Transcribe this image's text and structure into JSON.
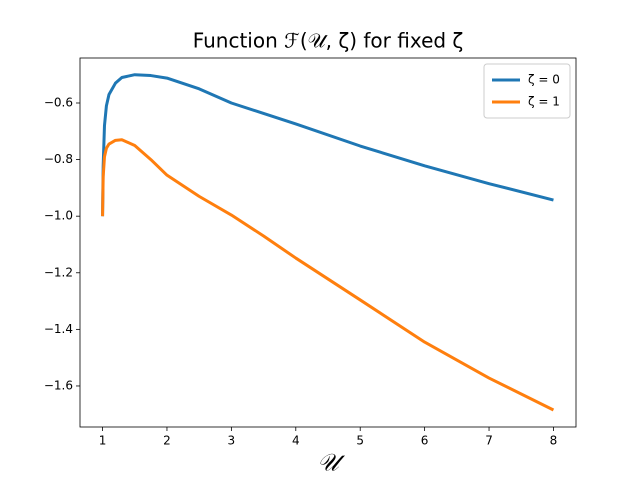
{
  "chart_data": {
    "type": "line",
    "title": "Function ℱ(𝒰, ζ) for fixed ζ",
    "x_label": "𝒰",
    "x": [
      1,
      1.01,
      1.03,
      1.06,
      1.1,
      1.2,
      1.3,
      1.5,
      1.75,
      2,
      2.5,
      3,
      3.5,
      4,
      5,
      6,
      7,
      8
    ],
    "series": [
      {
        "name": "ζ = 0",
        "color": "#1f77b4",
        "values": [
          -1.0,
          -0.82,
          -0.68,
          -0.61,
          -0.57,
          -0.53,
          -0.51,
          -0.5,
          -0.503,
          -0.512,
          -0.55,
          -0.6,
          -0.637,
          -0.674,
          -0.752,
          -0.822,
          -0.885,
          -0.943
        ]
      },
      {
        "name": "ζ = 1",
        "color": "#ff7f0e",
        "values": [
          -1.0,
          -0.86,
          -0.79,
          -0.76,
          -0.745,
          -0.732,
          -0.73,
          -0.75,
          -0.8,
          -0.855,
          -0.93,
          -0.996,
          -1.07,
          -1.148,
          -1.296,
          -1.445,
          -1.572,
          -1.685
        ]
      }
    ],
    "xlim": [
      0.65,
      8.35
    ],
    "ylim": [
      -1.745,
      -0.441
    ],
    "xticks": [
      1,
      2,
      3,
      4,
      5,
      6,
      7,
      8
    ],
    "yticks": [
      {
        "value": -1.6,
        "label": "−1.6"
      },
      {
        "value": -1.4,
        "label": "−1.4"
      },
      {
        "value": -1.2,
        "label": "−1.2"
      },
      {
        "value": -1.0,
        "label": "−1.0"
      },
      {
        "value": -0.8,
        "label": "−0.8"
      },
      {
        "value": -0.6,
        "label": "−0.6"
      }
    ],
    "legend": "upper right"
  }
}
